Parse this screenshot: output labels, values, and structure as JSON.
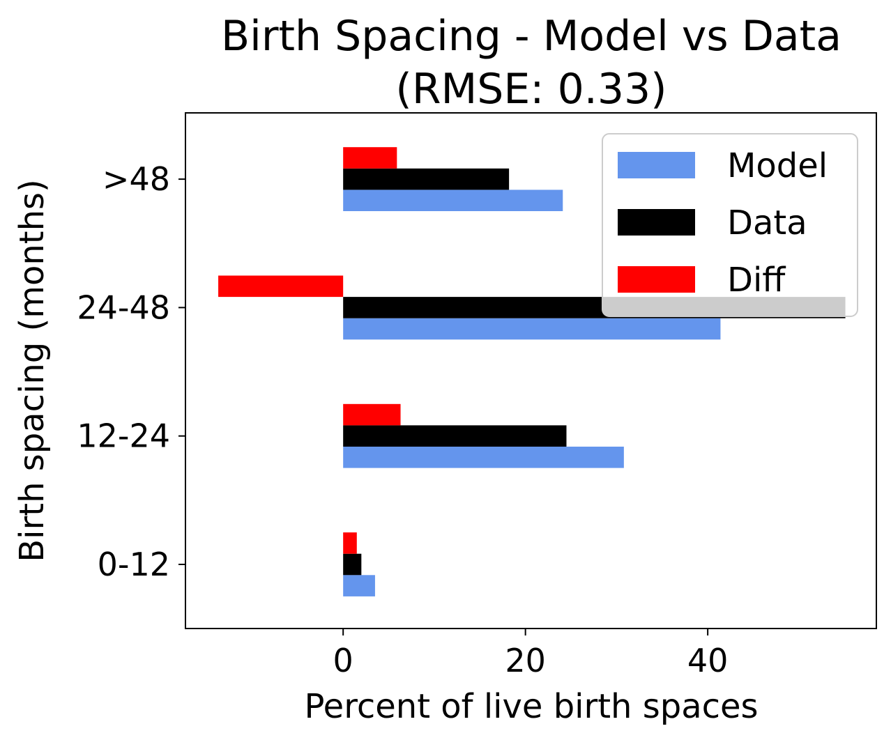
{
  "chart_data": {
    "type": "bar",
    "orientation": "horizontal",
    "title": "Birth Spacing - Model vs Data",
    "subtitle": "(RMSE: 0.33)",
    "xlabel": "Percent of live birth spaces",
    "ylabel": "Birth spacing (months)",
    "categories": [
      "0-12",
      "12-24",
      "24-48",
      ">48"
    ],
    "series": [
      {
        "name": "Model",
        "color": "#6495ED",
        "values": [
          3.5,
          30.8,
          41.4,
          24.1
        ]
      },
      {
        "name": "Data",
        "color": "#000000",
        "values": [
          2.0,
          24.5,
          55.1,
          18.2
        ]
      },
      {
        "name": "Diff",
        "color": "#FF0000",
        "values": [
          1.5,
          6.3,
          -13.7,
          5.9
        ]
      }
    ],
    "xlim": [
      -17.3,
      58.5
    ],
    "xticks": [
      0,
      20,
      40
    ],
    "grid": false,
    "legend_position": "top-right"
  }
}
